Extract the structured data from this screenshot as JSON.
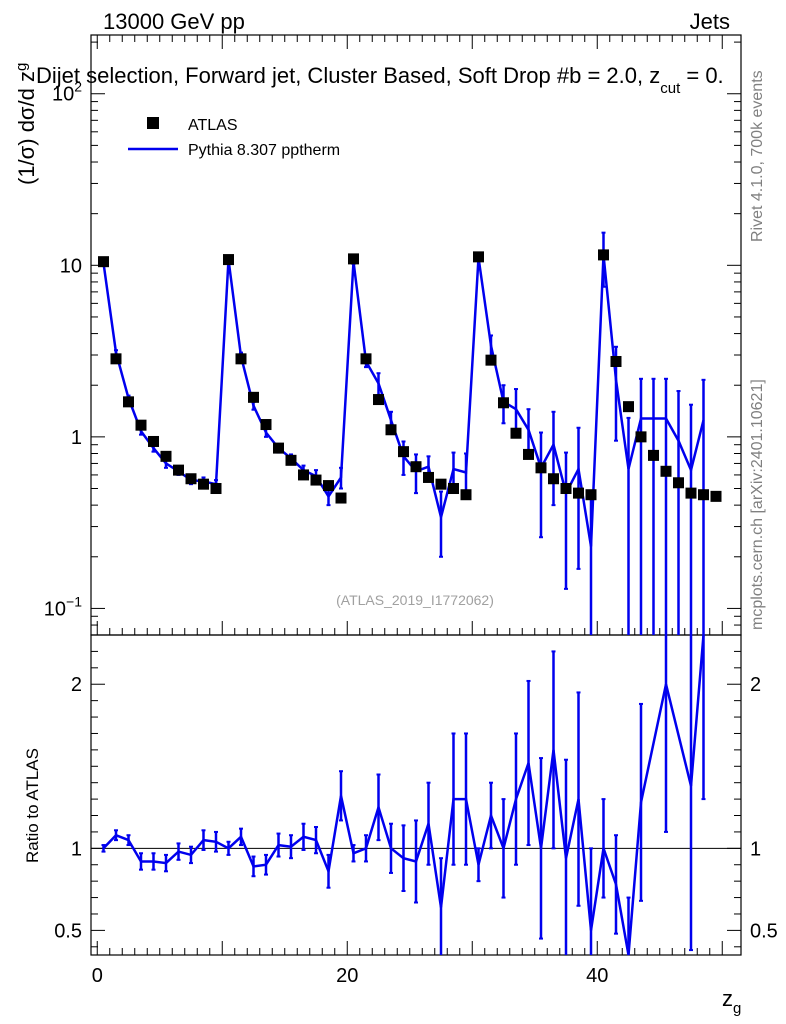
{
  "header": {
    "left": "13000 GeV pp",
    "right": "Jets",
    "title": "Dijet selection, Forward jet, Cluster Based, Soft Drop #b = 2.0, z",
    "title_sub": "cut",
    "title_tail": " = 0."
  },
  "side_texts": {
    "rivet": "Rivet 4.1.0,  700k events",
    "mcplots": "mcplots.cern.ch [arXiv:2401.10621]"
  },
  "watermark": "(ATLAS_2019_I1772062)",
  "colors": {
    "data": "#000000",
    "mc": "#0000ee",
    "grey": "#808080"
  },
  "chart_data": [
    {
      "type": "scatter",
      "panel": "main",
      "yscale": "log",
      "ylabel": "(1/σ) dσ/d z",
      "ylabel_sub": "g",
      "xlim": [
        -0.5,
        51.5
      ],
      "ylim": [
        0.07,
        220
      ],
      "ytick_labels": [
        {
          "value": 100,
          "base": "10",
          "exp": "2"
        },
        {
          "value": 10,
          "base": "10",
          "exp": ""
        },
        {
          "value": 1,
          "base": "1",
          "exp": ""
        },
        {
          "value": 0.1,
          "base": "10",
          "exp": "−1"
        }
      ],
      "legend": [
        {
          "name": "ATLAS",
          "marker": "square"
        },
        {
          "name": "Pythia 8.307 pptherm",
          "marker": "line"
        }
      ],
      "x": [
        0.5,
        1.5,
        2.5,
        3.5,
        4.5,
        5.5,
        6.5,
        7.5,
        8.5,
        9.5,
        10.5,
        11.5,
        12.5,
        13.5,
        14.5,
        15.5,
        16.5,
        17.5,
        18.5,
        19.5,
        20.5,
        21.5,
        22.5,
        23.5,
        24.5,
        25.5,
        26.5,
        27.5,
        28.5,
        29.5,
        30.5,
        31.5,
        32.5,
        33.5,
        34.5,
        35.5,
        36.5,
        37.5,
        38.5,
        39.5,
        40.5,
        41.5,
        42.5,
        43.5,
        44.5,
        45.5,
        46.5,
        47.5,
        48.5,
        49.5
      ],
      "series": [
        {
          "name": "ATLAS",
          "values": [
            10.5,
            2.85,
            1.6,
            1.17,
            0.94,
            0.77,
            0.64,
            0.57,
            0.53,
            0.5,
            10.8,
            2.85,
            1.7,
            1.18,
            0.86,
            0.73,
            0.6,
            0.56,
            0.52,
            0.44,
            10.9,
            2.85,
            1.65,
            1.1,
            0.82,
            0.67,
            0.58,
            0.53,
            0.5,
            0.46,
            11.2,
            2.8,
            1.58,
            1.05,
            0.79,
            0.66,
            0.57,
            0.5,
            0.47,
            0.46,
            11.5,
            2.75,
            1.5,
            1.0,
            0.78,
            0.63,
            0.54,
            0.47,
            0.46,
            0.45
          ]
        },
        {
          "name": "Pythia 8.307 pptherm",
          "x_extent": 49,
          "values": [
            10.3,
            3.1,
            1.68,
            1.08,
            0.86,
            0.7,
            0.63,
            0.56,
            0.55,
            0.53,
            10.8,
            2.95,
            1.52,
            1.06,
            0.86,
            0.75,
            0.64,
            0.59,
            0.45,
            0.58,
            10.5,
            2.75,
            2.05,
            1.25,
            0.77,
            0.63,
            0.67,
            0.34,
            0.65,
            0.62,
            11.1,
            3.4,
            1.6,
            1.45,
            1.1,
            0.66,
            0.9,
            0.47,
            0.65,
            0.23,
            11.5,
            2.15,
            0.65,
            1.28,
            1.28,
            1.28,
            0.95,
            0.64,
            1.25
          ],
          "err_lo": [
            0.2,
            0.1,
            0.06,
            0.05,
            0.04,
            0.04,
            0.03,
            0.03,
            0.03,
            0.03,
            0.3,
            0.15,
            0.08,
            0.06,
            0.05,
            0.04,
            0.04,
            0.05,
            0.05,
            0.08,
            0.3,
            0.2,
            0.3,
            0.15,
            0.17,
            0.16,
            0.1,
            0.14,
            0.16,
            0.18,
            0.4,
            0.5,
            0.4,
            0.45,
            0.35,
            0.4,
            0.5,
            0.34,
            0.48,
            0.22,
            4.0,
            1.2,
            0.64,
            1.27,
            1.27,
            1.27,
            0.94,
            0.63,
            1.24
          ],
          "err_hi": [
            0.2,
            0.1,
            0.06,
            0.05,
            0.04,
            0.04,
            0.03,
            0.03,
            0.03,
            0.03,
            0.3,
            0.15,
            0.08,
            0.06,
            0.05,
            0.04,
            0.04,
            0.05,
            0.05,
            0.08,
            0.3,
            0.2,
            0.3,
            0.15,
            0.17,
            0.16,
            0.1,
            0.14,
            0.16,
            0.18,
            0.4,
            0.5,
            0.4,
            0.45,
            0.35,
            0.4,
            0.5,
            0.34,
            0.48,
            0.22,
            4.0,
            1.2,
            0.64,
            0.9,
            0.9,
            0.9,
            0.9,
            0.9,
            0.9
          ]
        }
      ]
    },
    {
      "type": "line",
      "panel": "ratio",
      "ylabel": "Ratio to ATLAS",
      "xlabel": "z",
      "xlabel_sub": "g",
      "xlim": [
        -0.5,
        51.5
      ],
      "ylim": [
        0.35,
        2.3
      ],
      "xticks": [
        0,
        20,
        40
      ],
      "yticks": [
        0.5,
        1,
        2
      ],
      "reference": 1,
      "x": [
        0.5,
        1.5,
        2.5,
        3.5,
        4.5,
        5.5,
        6.5,
        7.5,
        8.5,
        9.5,
        10.5,
        11.5,
        12.5,
        13.5,
        14.5,
        15.5,
        16.5,
        17.5,
        18.5,
        19.5,
        20.5,
        21.5,
        22.5,
        23.5,
        24.5,
        25.5,
        26.5,
        27.5,
        28.5,
        29.5,
        30.5,
        31.5,
        32.5,
        33.5,
        34.5,
        35.5,
        36.5,
        37.5,
        38.5,
        39.5,
        40.5,
        41.5,
        42.5,
        43.5,
        45.5,
        47.5,
        48.5
      ],
      "values": [
        1.0,
        1.08,
        1.05,
        0.92,
        0.92,
        0.91,
        0.98,
        0.96,
        1.05,
        1.04,
        1.0,
        1.07,
        0.89,
        0.9,
        1.02,
        1.01,
        1.07,
        1.05,
        0.86,
        1.32,
        0.97,
        1.0,
        1.25,
        1.0,
        0.94,
        0.92,
        1.15,
        0.64,
        1.3,
        1.3,
        0.9,
        1.2,
        1.0,
        1.3,
        1.52,
        1.0,
        1.6,
        0.94,
        1.3,
        0.5,
        1.0,
        0.78,
        0.35,
        1.28,
        2.0,
        1.38,
        2.3
      ],
      "err_lo": [
        0.02,
        0.03,
        0.03,
        0.05,
        0.05,
        0.05,
        0.05,
        0.05,
        0.06,
        0.06,
        0.04,
        0.05,
        0.06,
        0.06,
        0.07,
        0.07,
        0.08,
        0.08,
        0.1,
        0.15,
        0.05,
        0.08,
        0.2,
        0.15,
        0.2,
        0.25,
        0.25,
        0.3,
        0.4,
        0.4,
        0.1,
        0.2,
        0.3,
        0.4,
        0.5,
        0.55,
        0.6,
        0.6,
        0.65,
        0.5,
        0.3,
        0.3,
        0.35,
        0.6,
        0.9,
        1.0,
        1.0
      ],
      "err_hi": [
        0.02,
        0.03,
        0.03,
        0.05,
        0.05,
        0.05,
        0.05,
        0.05,
        0.06,
        0.06,
        0.04,
        0.05,
        0.06,
        0.06,
        0.07,
        0.07,
        0.08,
        0.08,
        0.1,
        0.15,
        0.05,
        0.08,
        0.2,
        0.15,
        0.2,
        0.25,
        0.25,
        0.3,
        0.4,
        0.4,
        0.1,
        0.2,
        0.3,
        0.4,
        0.5,
        0.55,
        0.6,
        0.6,
        0.65,
        0.5,
        0.3,
        0.3,
        0.35,
        0.6,
        0.9,
        1.0,
        1.0
      ]
    }
  ]
}
